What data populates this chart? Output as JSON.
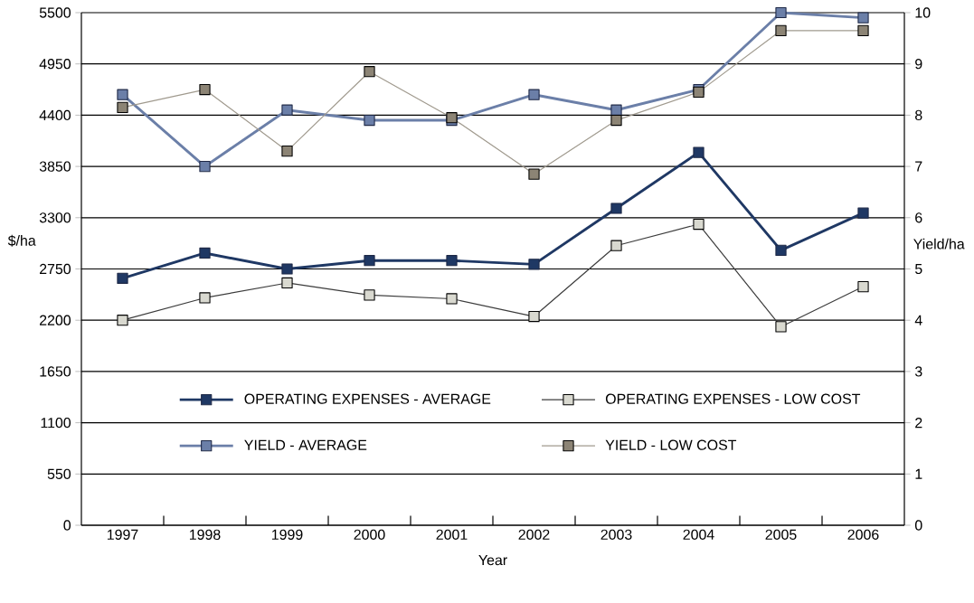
{
  "chart_data": {
    "type": "line",
    "xlabel": "Year",
    "ylabel": "$/ha",
    "y2label": "Yield/ha",
    "categories": [
      "1997",
      "1998",
      "1999",
      "2000",
      "2001",
      "2002",
      "2003",
      "2004",
      "2005",
      "2006"
    ],
    "ylim": [
      0,
      5500
    ],
    "yticks": [
      0,
      550,
      1100,
      1650,
      2200,
      2750,
      3300,
      3850,
      4400,
      4950,
      5500
    ],
    "y2lim": [
      0,
      10
    ],
    "y2ticks": [
      0,
      1,
      2,
      3,
      4,
      5,
      6,
      7,
      8,
      9,
      10
    ],
    "grid": "y",
    "legend": "bottom",
    "marker": "square",
    "series": [
      {
        "name": "OPERATING EXPENSES - AVERAGE",
        "color": "#1f3864",
        "values": [
          2650,
          2920,
          2750,
          2840,
          2840,
          2800,
          3400,
          4000,
          2950,
          3350
        ]
      },
      {
        "name": "OPERATING EXPENSES - LOW COST",
        "color": "#d9d9d0",
        "values": [
          2200,
          2440,
          2600,
          2470,
          2430,
          2240,
          3000,
          3230,
          2130,
          2560
        ]
      },
      {
        "name": "YIELD - AVERAGE",
        "color": "#6b7fa8",
        "axis": "y2",
        "values": [
          8.4,
          7.0,
          8.1,
          7.9,
          7.9,
          8.4,
          8.1,
          8.5,
          10.0,
          9.9
        ]
      },
      {
        "name": "YIELD - LOW COST",
        "color": "#a09a8e",
        "axis": "y2",
        "values": [
          8.15,
          8.5,
          7.3,
          8.85,
          7.95,
          6.85,
          7.9,
          8.45,
          9.65,
          9.65
        ]
      }
    ]
  }
}
